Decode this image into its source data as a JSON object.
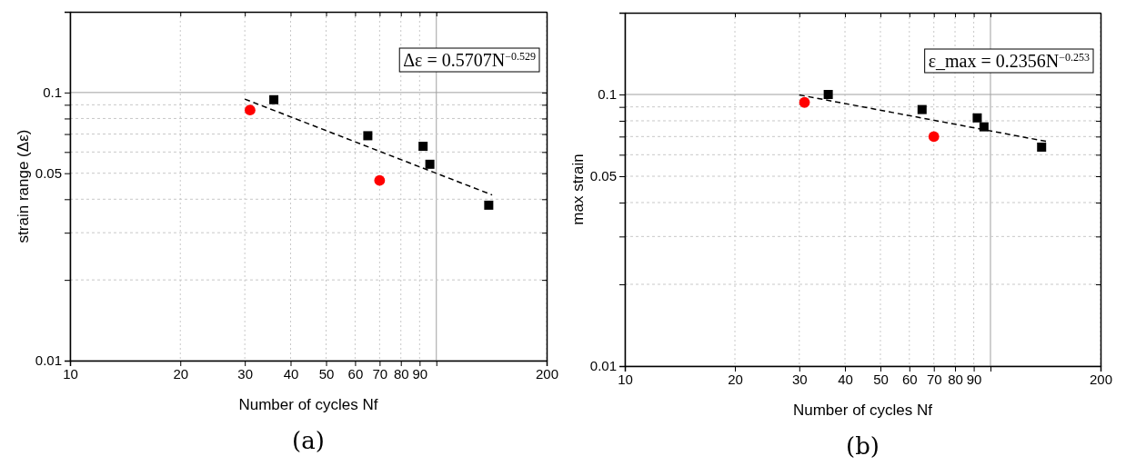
{
  "chart_data": [
    {
      "type": "scatter",
      "title": "(a)",
      "xlabel": "Number of cycles Nf",
      "ylabel": "strain range (Δε)",
      "log": "xy",
      "grid": true,
      "xlim": [
        10,
        200
      ],
      "xticks": [
        10,
        20,
        30,
        40,
        50,
        60,
        70,
        80,
        90,
        {
          "value": 100,
          "label": null
        },
        200
      ],
      "ylim": [
        0.01,
        0.2
      ],
      "yticks": [
        0.01,
        {
          "value": 0.02,
          "label": null
        },
        {
          "value": 0.03,
          "label": null
        },
        {
          "value": 0.04,
          "label": null
        },
        0.05,
        {
          "value": 0.06,
          "label": null
        },
        {
          "value": 0.07,
          "label": null
        },
        {
          "value": 0.08,
          "label": null
        },
        {
          "value": 0.09,
          "label": null
        },
        0.1
      ],
      "annotations": [
        "Δε = 0.5707N$^{−0.529}$"
      ],
      "series": [
        {
          "marker": "square",
          "color": "#000000",
          "x": [
            36,
            65,
            92,
            96,
            139
          ],
          "values": [
            0.094,
            0.069,
            0.063,
            0.054,
            0.038
          ]
        },
        {
          "marker": "circle",
          "color": "#ff0000",
          "x": [
            31,
            70
          ],
          "values": [
            0.086,
            0.047
          ]
        },
        {
          "type": "line",
          "marker": "none",
          "line_style": "dashed",
          "color": "#000000",
          "x": [
            30,
            142
          ],
          "values": [
            0.0945,
            0.0415
          ]
        }
      ]
    },
    {
      "type": "scatter",
      "title": "(b)",
      "xlabel": "Number of cycles Nf",
      "ylabel": "max strain",
      "log": "xy",
      "grid": true,
      "xlim": [
        10,
        200
      ],
      "xticks": [
        10,
        20,
        30,
        40,
        50,
        60,
        70,
        80,
        90,
        {
          "value": 100,
          "label": null
        },
        200
      ],
      "ylim": [
        0.01,
        0.2
      ],
      "yticks": [
        0.01,
        {
          "value": 0.02,
          "label": null
        },
        {
          "value": 0.03,
          "label": null
        },
        {
          "value": 0.04,
          "label": null
        },
        0.05,
        {
          "value": 0.06,
          "label": null
        },
        {
          "value": 0.07,
          "label": null
        },
        {
          "value": 0.08,
          "label": null
        },
        {
          "value": 0.09,
          "label": null
        },
        0.1
      ],
      "annotations": [
        "ε_max = 0.2356N$^{−0.253}$"
      ],
      "series": [
        {
          "marker": "square",
          "color": "#000000",
          "x": [
            36,
            65,
            92,
            96,
            138
          ],
          "values": [
            0.1,
            0.088,
            0.082,
            0.076,
            0.064
          ]
        },
        {
          "marker": "circle",
          "color": "#ff0000",
          "x": [
            31,
            70
          ],
          "values": [
            0.0935,
            0.07
          ]
        },
        {
          "type": "line",
          "marker": "none",
          "line_style": "dashed",
          "color": "#000000",
          "x": [
            30,
            142
          ],
          "values": [
            0.0996,
            0.0672
          ]
        }
      ]
    }
  ]
}
